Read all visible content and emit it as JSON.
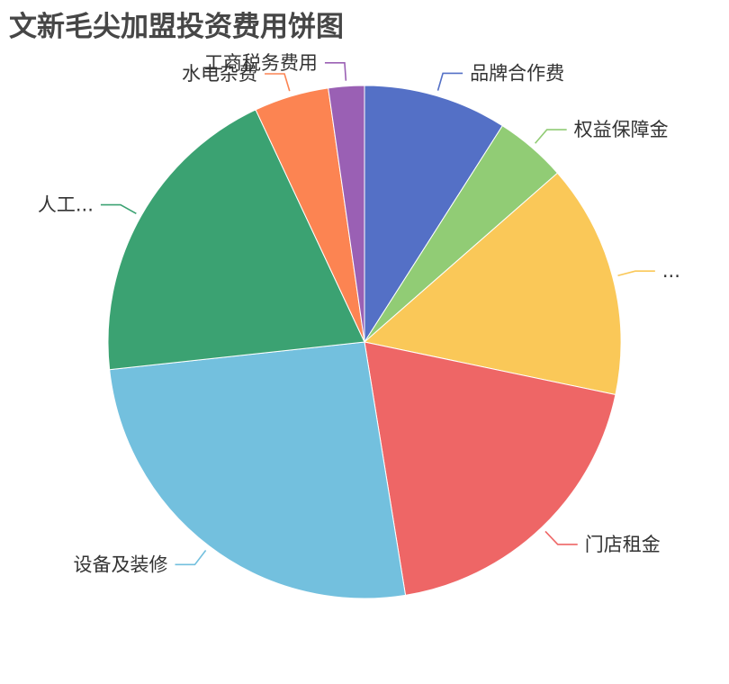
{
  "chart_data": {
    "type": "pie",
    "title": "文新毛尖加盟投资费用饼图",
    "slices": [
      {
        "label": "品牌合作费",
        "value": 9.2,
        "color": "#5470c6",
        "label_side": "right"
      },
      {
        "label": "权益保障金",
        "value": 4.6,
        "color": "#91cc75",
        "label_side": "right"
      },
      {
        "label": "...",
        "value": 15.0,
        "color": "#fac858",
        "label_side": "right"
      },
      {
        "label": "门店租金",
        "value": 19.5,
        "color": "#ee6666",
        "label_side": "right"
      },
      {
        "label": "设备及装修",
        "value": 26.3,
        "color": "#73c0de",
        "label_side": "left"
      },
      {
        "label": "人工...",
        "value": 20.1,
        "color": "#3ba272",
        "label_side": "left"
      },
      {
        "label": "水电杂费",
        "value": 4.8,
        "color": "#fc8452",
        "label_side": "left"
      },
      {
        "label": "工商税务费用",
        "value": 2.3,
        "color": "#9a60b4",
        "label_side": "left"
      }
    ],
    "start_angle": "12 o'clock",
    "direction": "clockwise",
    "legend": "none"
  }
}
